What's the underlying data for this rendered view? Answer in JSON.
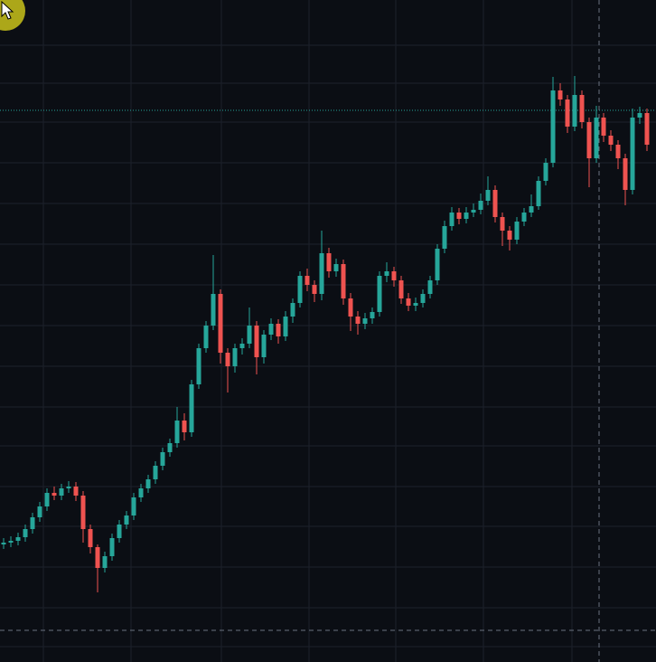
{
  "chart_data": {
    "type": "candlestick",
    "ylim": [
      0,
      732
    ],
    "up_color": "#26a69a",
    "down_color": "#ef5350",
    "open": [
      130,
      132,
      134,
      138,
      147,
      160,
      172,
      187,
      184,
      192,
      194,
      184,
      147,
      127,
      104,
      117,
      137,
      152,
      162,
      182,
      192,
      202,
      217,
      232,
      242,
      267,
      254,
      307,
      347,
      372,
      407,
      342,
      327,
      347,
      352,
      372,
      337,
      362,
      374,
      360,
      382,
      397,
      427,
      417,
      407,
      452,
      432,
      440,
      402,
      382,
      374,
      380,
      387,
      427,
      432,
      422,
      402,
      394,
      397,
      407,
      422,
      457,
      482,
      497,
      490,
      497,
      500,
      510,
      522,
      492,
      477,
      467,
      487,
      497,
      504,
      532,
      552,
      632,
      622,
      592,
      627,
      597,
      557,
      602,
      582,
      572,
      557,
      522,
      602,
      607
    ],
    "high": [
      137,
      139,
      143,
      152,
      165,
      177,
      192,
      194,
      197,
      200,
      199,
      189,
      152,
      130,
      122,
      142,
      157,
      167,
      187,
      197,
      207,
      222,
      237,
      247,
      282,
      275,
      312,
      352,
      377,
      450,
      412,
      347,
      352,
      358,
      392,
      377,
      367,
      380,
      379,
      388,
      402,
      432,
      435,
      422,
      477,
      458,
      446,
      445,
      408,
      388,
      386,
      392,
      432,
      442,
      437,
      427,
      408,
      403,
      412,
      427,
      462,
      488,
      503,
      502,
      503,
      507,
      518,
      537,
      527,
      497,
      482,
      492,
      502,
      517,
      537,
      557,
      647,
      640,
      627,
      648,
      632,
      602,
      615,
      607,
      588,
      577,
      562,
      612,
      614,
      612
    ],
    "low": [
      125,
      127,
      129,
      133,
      142,
      155,
      167,
      179,
      179,
      187,
      178,
      132,
      120,
      77,
      99,
      112,
      132,
      147,
      157,
      177,
      187,
      197,
      212,
      227,
      237,
      245,
      249,
      302,
      342,
      367,
      330,
      298,
      320,
      340,
      347,
      318,
      330,
      356,
      352,
      355,
      375,
      392,
      410,
      398,
      400,
      425,
      426,
      395,
      366,
      362,
      368,
      374,
      382,
      420,
      415,
      396,
      388,
      388,
      392,
      402,
      417,
      452,
      477,
      484,
      485,
      492,
      495,
      505,
      486,
      460,
      455,
      462,
      482,
      492,
      500,
      527,
      547,
      615,
      585,
      587,
      590,
      525,
      552,
      575,
      565,
      545,
      505,
      517,
      595,
      565
    ],
    "close": [
      132,
      134,
      138,
      147,
      160,
      172,
      187,
      184,
      192,
      194,
      184,
      147,
      127,
      104,
      117,
      137,
      152,
      162,
      182,
      192,
      202,
      217,
      232,
      242,
      267,
      254,
      307,
      347,
      372,
      407,
      342,
      327,
      347,
      352,
      372,
      337,
      362,
      374,
      360,
      382,
      397,
      427,
      417,
      407,
      452,
      432,
      440,
      402,
      382,
      374,
      380,
      387,
      427,
      432,
      422,
      402,
      394,
      397,
      407,
      422,
      457,
      482,
      497,
      490,
      497,
      500,
      510,
      522,
      492,
      477,
      467,
      487,
      497,
      504,
      532,
      552,
      632,
      622,
      592,
      627,
      597,
      557,
      602,
      582,
      572,
      557,
      522,
      602,
      607,
      572
    ]
  }
}
